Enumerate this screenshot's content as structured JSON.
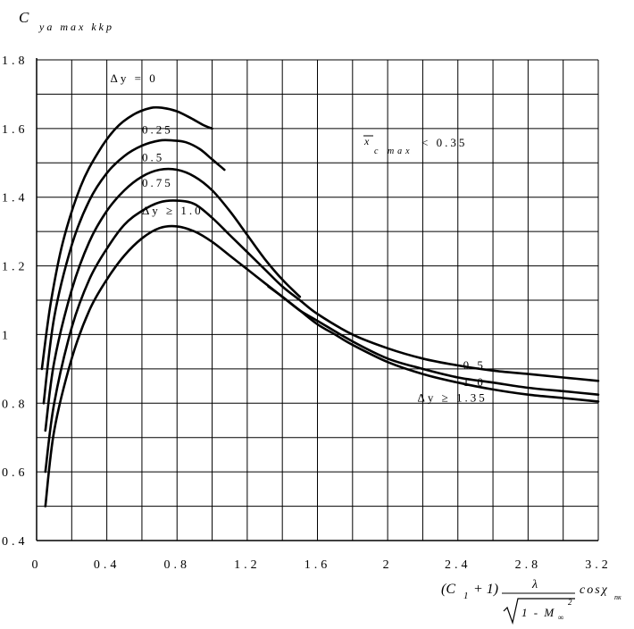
{
  "chart_data": {
    "type": "line",
    "ylabel_main": "C",
    "ylabel_sub": "ya max kkp",
    "xlabel": {
      "prefix": "(C",
      "prefix_sub": "1",
      "prefix_rest": "+ 1)",
      "numerator": "λ",
      "denominator_main": "1 - M",
      "denominator_sub": "∞",
      "denominator_sup": "2",
      "suffix": "cosχ",
      "suffix_sub": "пк"
    },
    "xlim": [
      0,
      3.2
    ],
    "ylim": [
      0.4,
      1.8
    ],
    "x_ticks": [
      "0",
      "0.4",
      "0.8",
      "1.2",
      "1.6",
      "2",
      "2.4",
      "2.8",
      "3.2"
    ],
    "y_ticks": [
      "0.4",
      "0.6",
      "0.8",
      "1",
      "1.2",
      "1.4",
      "1.6",
      "1.8"
    ],
    "grid": true,
    "note": "x c max < 0.35",
    "note_main": "x",
    "note_sub": "c max",
    "note_rest": "< 0.35",
    "series": [
      {
        "name": "Δy = 0",
        "x": [
          0.03,
          0.08,
          0.15,
          0.25,
          0.35,
          0.45,
          0.55,
          0.65,
          0.72,
          0.8,
          0.88,
          0.95,
          1.0
        ],
        "y": [
          0.9,
          1.09,
          1.27,
          1.43,
          1.53,
          1.6,
          1.64,
          1.66,
          1.66,
          1.65,
          1.63,
          1.61,
          1.6
        ]
      },
      {
        "name": "0.25",
        "x": [
          0.04,
          0.1,
          0.2,
          0.3,
          0.4,
          0.5,
          0.6,
          0.7,
          0.78,
          0.85,
          0.93,
          1.0,
          1.07
        ],
        "y": [
          0.8,
          1.05,
          1.26,
          1.39,
          1.47,
          1.52,
          1.55,
          1.565,
          1.565,
          1.56,
          1.54,
          1.51,
          1.48
        ]
      },
      {
        "name": "0.5",
        "x": [
          0.05,
          0.1,
          0.2,
          0.3,
          0.4,
          0.5,
          0.6,
          0.7,
          0.8,
          0.9,
          1.0,
          1.1,
          1.2,
          1.3,
          1.4,
          1.5
        ],
        "y": [
          0.72,
          0.92,
          1.13,
          1.27,
          1.36,
          1.42,
          1.46,
          1.48,
          1.48,
          1.46,
          1.42,
          1.36,
          1.29,
          1.22,
          1.16,
          1.11
        ]
      },
      {
        "name": "0.75",
        "x": [
          0.05,
          0.1,
          0.2,
          0.3,
          0.4,
          0.5,
          0.6,
          0.7,
          0.8,
          0.9,
          1.0,
          1.1,
          1.2,
          1.3,
          1.4,
          1.5,
          1.6,
          1.8,
          2.0,
          2.2,
          2.4,
          2.6,
          2.8,
          3.0,
          3.2
        ],
        "y": [
          0.6,
          0.8,
          1.02,
          1.16,
          1.25,
          1.32,
          1.36,
          1.385,
          1.39,
          1.38,
          1.34,
          1.29,
          1.24,
          1.19,
          1.14,
          1.1,
          1.06,
          1.0,
          0.96,
          0.93,
          0.91,
          0.895,
          0.885,
          0.875,
          0.865
        ]
      },
      {
        "name": "Δy ≥ 1.0",
        "x": [
          0.05,
          0.1,
          0.2,
          0.3,
          0.4,
          0.5,
          0.6,
          0.7,
          0.8,
          0.9,
          1.0,
          1.1,
          1.2,
          1.3,
          1.4,
          1.5,
          1.6,
          1.8,
          2.0,
          2.2,
          2.4,
          2.6,
          2.8,
          3.0,
          3.2
        ],
        "y": [
          0.5,
          0.72,
          0.93,
          1.07,
          1.16,
          1.23,
          1.28,
          1.31,
          1.315,
          1.3,
          1.27,
          1.23,
          1.19,
          1.15,
          1.11,
          1.07,
          1.04,
          0.98,
          0.93,
          0.9,
          0.875,
          0.86,
          0.845,
          0.835,
          0.825
        ]
      },
      {
        "name": "Δy ≥ 1.35",
        "x": [
          1.32,
          1.4,
          1.5,
          1.6,
          1.7,
          1.8,
          2.0,
          2.2,
          2.4,
          2.6,
          2.8,
          3.0,
          3.2
        ],
        "y": [
          1.14,
          1.11,
          1.07,
          1.03,
          1.0,
          0.97,
          0.92,
          0.885,
          0.86,
          0.84,
          0.825,
          0.815,
          0.805
        ]
      }
    ],
    "curve_labels": [
      {
        "text": "Δy = 0",
        "x": 0.42,
        "y": 1.735
      },
      {
        "text": "0.25",
        "x": 0.6,
        "y": 1.585
      },
      {
        "text": "0.5",
        "x": 0.6,
        "y": 1.505
      },
      {
        "text": "0.75",
        "x": 0.6,
        "y": 1.43
      },
      {
        "text": "Δy ≥ 1.0",
        "x": 0.6,
        "y": 1.35
      },
      {
        "text": "0.5",
        "x": 2.43,
        "y": 0.9
      },
      {
        "text": "1.0",
        "x": 2.43,
        "y": 0.85
      },
      {
        "text": "Δy ≥ 1.35",
        "x": 2.17,
        "y": 0.805
      }
    ]
  }
}
